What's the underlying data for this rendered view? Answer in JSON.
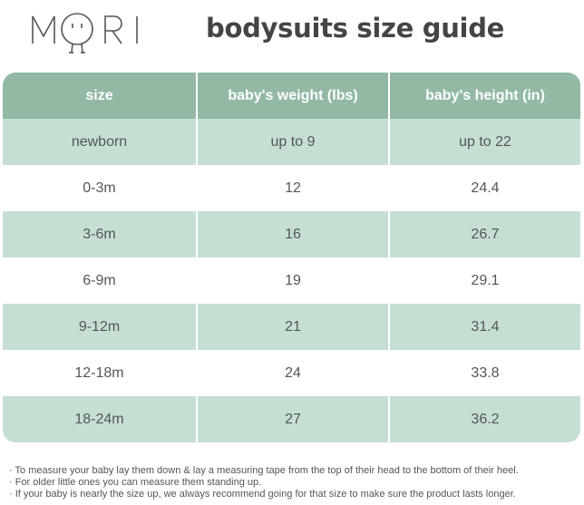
{
  "brand": {
    "logo_text": "MORI"
  },
  "title": "bodysuits size guide",
  "table": {
    "headers": [
      "size",
      "baby's weight (lbs)",
      "baby's height (in)"
    ],
    "rows": [
      [
        "newborn",
        "up to 9",
        "up to 22"
      ],
      [
        "0-3m",
        "12",
        "24.4"
      ],
      [
        "3-6m",
        "16",
        "26.7"
      ],
      [
        "6-9m",
        "19",
        "29.1"
      ],
      [
        "9-12m",
        "21",
        "31.4"
      ],
      [
        "12-18m",
        "24",
        "33.8"
      ],
      [
        "18-24m",
        "27",
        "36.2"
      ]
    ]
  },
  "notes": [
    "· To measure your baby lay them down & lay a measuring tape from the top of their head to the bottom of their heel.",
    "· For older little ones you can measure them standing up.",
    "· If your baby is nearly the size up, we always recommend going for that size to make sure the product lasts longer."
  ],
  "colors": {
    "header": "#93b9a5",
    "alt_row": "#c5e0d3",
    "text": "#555555"
  }
}
